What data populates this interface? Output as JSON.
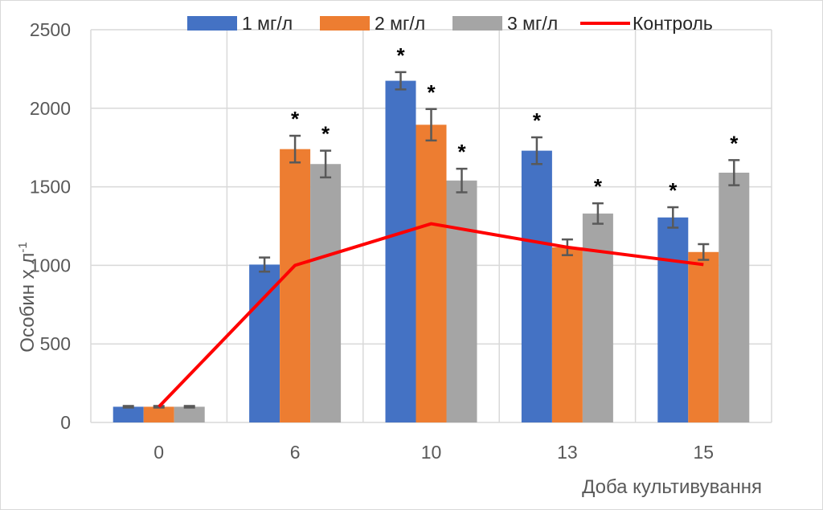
{
  "chart_data": {
    "type": "bar",
    "title": "",
    "xlabel": "Доба культивування",
    "ylabel": "Особин х л",
    "ylabel_sup": "-1",
    "ylim": [
      0,
      2500
    ],
    "yticks": [
      "0",
      "500",
      "1000",
      "1500",
      "2000",
      "2500"
    ],
    "categories": [
      "0",
      "6",
      "10",
      "13",
      "15"
    ],
    "grid": true,
    "legend_position": "top",
    "series": [
      {
        "name": "1 мг/л",
        "type": "bar",
        "color": "#4472c4",
        "values": [
          100,
          1005,
          2175,
          1730,
          1305
        ],
        "errors": [
          5,
          45,
          55,
          85,
          65
        ],
        "significant": [
          false,
          false,
          true,
          true,
          true
        ]
      },
      {
        "name": "2 мг/л",
        "type": "bar",
        "color": "#ed7d31",
        "values": [
          100,
          1740,
          1895,
          1115,
          1085
        ],
        "errors": [
          5,
          85,
          100,
          50,
          50
        ],
        "significant": [
          false,
          true,
          true,
          false,
          false
        ]
      },
      {
        "name": "3 мг/л",
        "type": "bar",
        "color": "#a5a5a5",
        "values": [
          100,
          1645,
          1540,
          1330,
          1590
        ],
        "errors": [
          5,
          85,
          75,
          65,
          80
        ],
        "significant": [
          false,
          true,
          true,
          true,
          true
        ]
      },
      {
        "name": "Контроль",
        "type": "line",
        "color": "#ff0000",
        "values": [
          100,
          1000,
          1265,
          1115,
          1005
        ]
      }
    ],
    "significance_marker": "*"
  }
}
